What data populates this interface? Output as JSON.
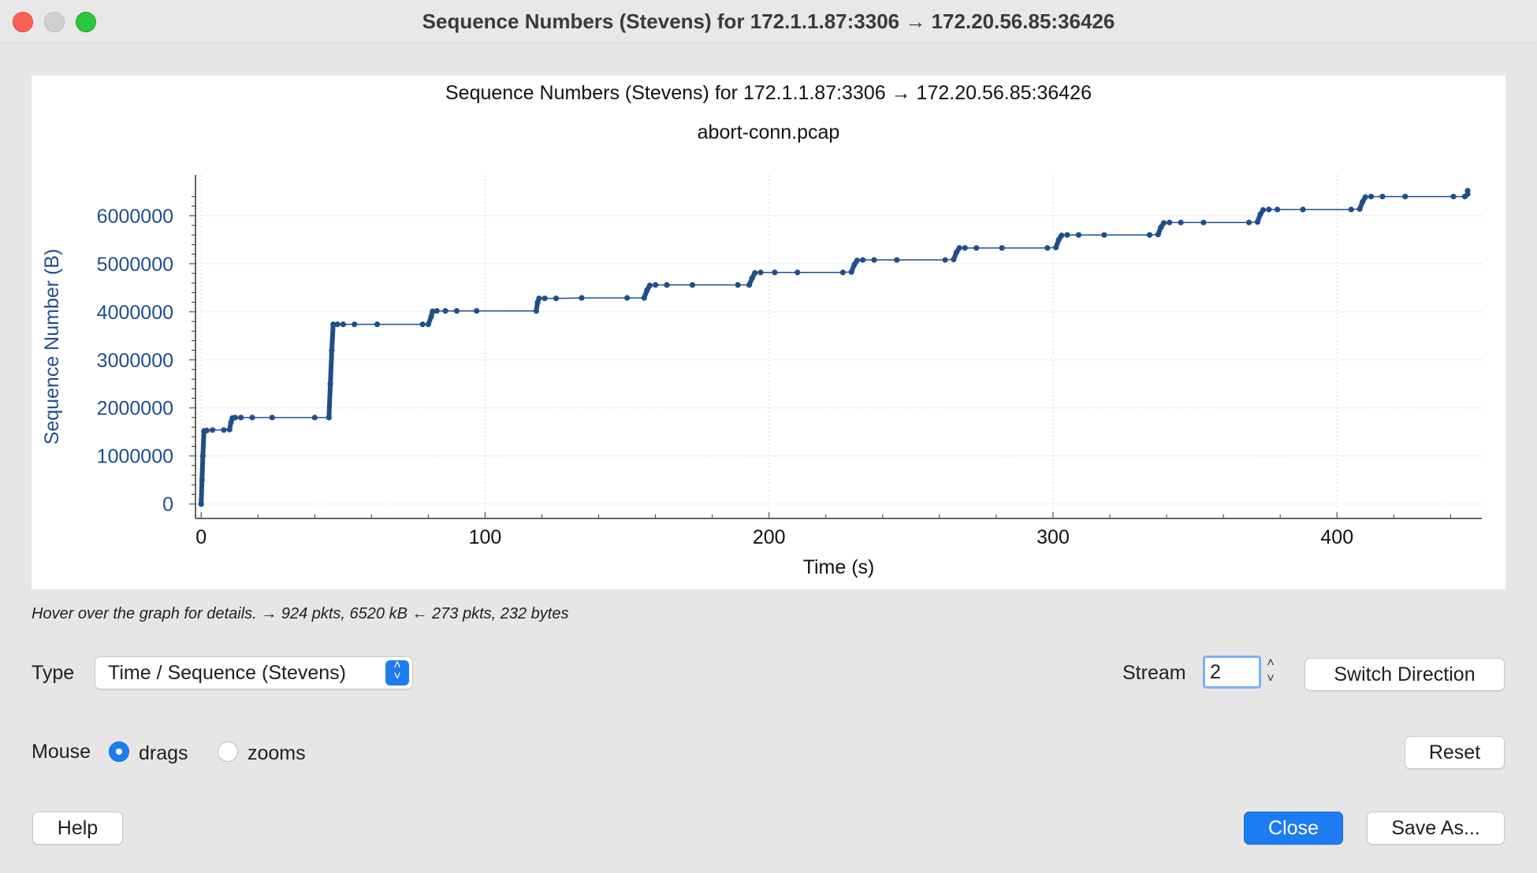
{
  "window": {
    "title": "Sequence Numbers (Stevens) for 172.1.1.87:3306 → 172.20.56.85:36426"
  },
  "chart_data": {
    "type": "scatter",
    "title": "Sequence Numbers (Stevens) for 172.1.1.87:3306 → 172.20.56.85:36426",
    "subtitle": "abort-conn.pcap",
    "xlabel": "Time (s)",
    "ylabel": "Sequence Number (B)",
    "xlim": [
      -2,
      451
    ],
    "ylim": [
      -300000,
      6850000
    ],
    "x_ticks": [
      0,
      100,
      200,
      300,
      400
    ],
    "y_ticks": [
      0,
      1000000,
      2000000,
      3000000,
      4000000,
      5000000,
      6000000
    ],
    "grid": true,
    "color": "#1f4e8c",
    "series": [
      {
        "points": [
          [
            0,
            0
          ],
          [
            0.3,
            500000
          ],
          [
            0.6,
            1000000
          ],
          [
            1,
            1520000
          ],
          [
            2,
            1530000
          ],
          [
            4,
            1540000
          ],
          [
            8,
            1540000
          ],
          [
            10,
            1550000
          ],
          [
            10.5,
            1700000
          ],
          [
            11,
            1790000
          ],
          [
            12,
            1800000
          ],
          [
            14,
            1800000
          ],
          [
            18,
            1800000
          ],
          [
            25,
            1800000
          ],
          [
            40,
            1800000
          ],
          [
            45,
            1800000
          ],
          [
            45.5,
            2500000
          ],
          [
            46,
            3200000
          ],
          [
            46.5,
            3740000
          ],
          [
            48,
            3740000
          ],
          [
            50,
            3740000
          ],
          [
            54,
            3740000
          ],
          [
            62,
            3740000
          ],
          [
            78,
            3740000
          ],
          [
            80,
            3740000
          ],
          [
            81,
            3900000
          ],
          [
            81.5,
            4010000
          ],
          [
            83,
            4020000
          ],
          [
            86,
            4020000
          ],
          [
            90,
            4020000
          ],
          [
            97,
            4020000
          ],
          [
            118,
            4020000
          ],
          [
            118.5,
            4200000
          ],
          [
            119,
            4280000
          ],
          [
            121,
            4280000
          ],
          [
            125,
            4280000
          ],
          [
            134,
            4290000
          ],
          [
            150,
            4290000
          ],
          [
            156,
            4290000
          ],
          [
            157,
            4450000
          ],
          [
            158,
            4550000
          ],
          [
            160,
            4560000
          ],
          [
            164,
            4560000
          ],
          [
            173,
            4560000
          ],
          [
            189,
            4560000
          ],
          [
            193,
            4560000
          ],
          [
            194,
            4700000
          ],
          [
            195,
            4810000
          ],
          [
            197,
            4820000
          ],
          [
            202,
            4820000
          ],
          [
            210,
            4820000
          ],
          [
            226,
            4820000
          ],
          [
            229,
            4830000
          ],
          [
            230,
            4980000
          ],
          [
            231,
            5070000
          ],
          [
            233,
            5080000
          ],
          [
            237,
            5080000
          ],
          [
            245,
            5080000
          ],
          [
            262,
            5080000
          ],
          [
            265,
            5090000
          ],
          [
            266,
            5240000
          ],
          [
            267,
            5330000
          ],
          [
            269,
            5330000
          ],
          [
            273,
            5330000
          ],
          [
            282,
            5330000
          ],
          [
            298,
            5330000
          ],
          [
            301,
            5340000
          ],
          [
            302,
            5500000
          ],
          [
            303,
            5590000
          ],
          [
            305,
            5600000
          ],
          [
            309,
            5600000
          ],
          [
            318,
            5600000
          ],
          [
            334,
            5600000
          ],
          [
            337,
            5610000
          ],
          [
            338,
            5760000
          ],
          [
            339,
            5850000
          ],
          [
            341,
            5860000
          ],
          [
            345,
            5860000
          ],
          [
            353,
            5860000
          ],
          [
            369,
            5860000
          ],
          [
            372,
            5870000
          ],
          [
            373,
            6030000
          ],
          [
            374,
            6120000
          ],
          [
            376,
            6130000
          ],
          [
            379,
            6130000
          ],
          [
            388,
            6130000
          ],
          [
            405,
            6130000
          ],
          [
            408,
            6140000
          ],
          [
            409,
            6290000
          ],
          [
            410,
            6390000
          ],
          [
            412,
            6400000
          ],
          [
            416,
            6400000
          ],
          [
            424,
            6400000
          ],
          [
            441,
            6400000
          ],
          [
            445,
            6400000
          ],
          [
            446,
            6450000
          ],
          [
            446,
            6520000
          ]
        ]
      }
    ]
  },
  "hover_text": "Hover over the graph for details. → 924 pkts, 6520 kB ← 273 pkts, 232 bytes",
  "controls": {
    "type_label": "Type",
    "type_value": "Time / Sequence (Stevens)",
    "stream_label": "Stream",
    "stream_value": "2",
    "switch_direction": "Switch Direction",
    "mouse_label": "Mouse",
    "drags_label": "drags",
    "zooms_label": "zooms",
    "reset": "Reset",
    "help": "Help",
    "close": "Close",
    "save_as": "Save As..."
  }
}
